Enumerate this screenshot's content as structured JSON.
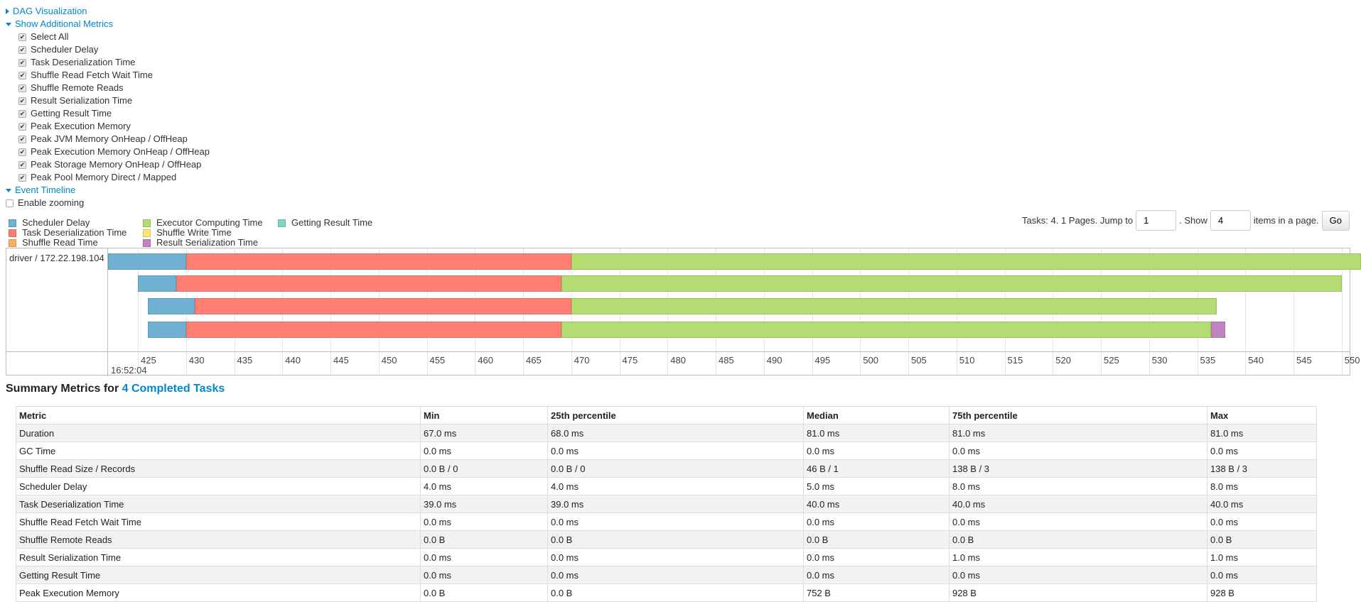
{
  "sections": {
    "dag": "DAG Visualization",
    "metrics": "Show Additional Metrics",
    "timeline": "Event Timeline"
  },
  "metric_checkboxes": [
    {
      "label": "Select All",
      "checked": true
    },
    {
      "label": "Scheduler Delay",
      "checked": true
    },
    {
      "label": "Task Deserialization Time",
      "checked": true
    },
    {
      "label": "Shuffle Read Fetch Wait Time",
      "checked": true
    },
    {
      "label": "Shuffle Remote Reads",
      "checked": true
    },
    {
      "label": "Result Serialization Time",
      "checked": true
    },
    {
      "label": "Getting Result Time",
      "checked": true
    },
    {
      "label": "Peak Execution Memory",
      "checked": true
    },
    {
      "label": "Peak JVM Memory OnHeap / OffHeap",
      "checked": true
    },
    {
      "label": "Peak Execution Memory OnHeap / OffHeap",
      "checked": true
    },
    {
      "label": "Peak Storage Memory OnHeap / OffHeap",
      "checked": true
    },
    {
      "label": "Peak Pool Memory Direct / Mapped",
      "checked": true
    }
  ],
  "enable_zooming": {
    "label": "Enable zooming",
    "checked": false
  },
  "legend": [
    {
      "label": "Scheduler Delay",
      "color": "#6fb1d2"
    },
    {
      "label": "Task Deserialization Time",
      "color": "#ff7f73"
    },
    {
      "label": "Shuffle Read Time",
      "color": "#fdae61"
    },
    {
      "label": "Executor Computing Time",
      "color": "#b3dc73"
    },
    {
      "label": "Shuffle Write Time",
      "color": "#ffe475"
    },
    {
      "label": "Result Serialization Time",
      "color": "#c183bf"
    },
    {
      "label": "Getting Result Time",
      "color": "#7fd4c4"
    }
  ],
  "pager": {
    "text1": "Tasks: 4. 1 Pages. Jump to",
    "page": "1",
    "text2": ". Show",
    "size": "4",
    "text3": "items in a page.",
    "go": "Go"
  },
  "timeline": {
    "executor": "driver / 172.22.198.104",
    "date_label": "16:52:04",
    "ticks": [
      "425",
      "430",
      "435",
      "440",
      "445",
      "450",
      "455",
      "460",
      "465",
      "470",
      "475",
      "480",
      "485",
      "490",
      "495",
      "500",
      "505",
      "510",
      "515",
      "520",
      "525",
      "530",
      "535",
      "540",
      "545",
      "550"
    ],
    "tasks": [
      [
        {
          "type": "Scheduler Delay",
          "start": 421.9,
          "end": 430
        },
        {
          "type": "Task Deserialization Time",
          "start": 430,
          "end": 470
        },
        {
          "type": "Executor Computing Time",
          "start": 470,
          "end": 552
        }
      ],
      [
        {
          "type": "Scheduler Delay",
          "start": 425,
          "end": 429
        },
        {
          "type": "Task Deserialization Time",
          "start": 429,
          "end": 469
        },
        {
          "type": "Executor Computing Time",
          "start": 469,
          "end": 550
        }
      ],
      [
        {
          "type": "Scheduler Delay",
          "start": 426,
          "end": 430.9
        },
        {
          "type": "Task Deserialization Time",
          "start": 430.9,
          "end": 470
        },
        {
          "type": "Executor Computing Time",
          "start": 470,
          "end": 537
        }
      ],
      [
        {
          "type": "Scheduler Delay",
          "start": 426,
          "end": 430
        },
        {
          "type": "Task Deserialization Time",
          "start": 430,
          "end": 469
        },
        {
          "type": "Executor Computing Time",
          "start": 469,
          "end": 536.4
        },
        {
          "type": "Result Serialization Time",
          "start": 536.4,
          "end": 537.9
        }
      ]
    ]
  },
  "summary": {
    "title": "Summary Metrics for",
    "link": "4 Completed Tasks",
    "columns": [
      "Metric",
      "Min",
      "25th percentile",
      "Median",
      "75th percentile",
      "Max"
    ],
    "rows": [
      [
        "Duration",
        "67.0 ms",
        "68.0 ms",
        "81.0 ms",
        "81.0 ms",
        "81.0 ms"
      ],
      [
        "GC Time",
        "0.0 ms",
        "0.0 ms",
        "0.0 ms",
        "0.0 ms",
        "0.0 ms"
      ],
      [
        "Shuffle Read Size / Records",
        "0.0 B / 0",
        "0.0 B / 0",
        "46 B / 1",
        "138 B / 3",
        "138 B / 3"
      ],
      [
        "Scheduler Delay",
        "4.0 ms",
        "4.0 ms",
        "5.0 ms",
        "8.0 ms",
        "8.0 ms"
      ],
      [
        "Task Deserialization Time",
        "39.0 ms",
        "39.0 ms",
        "40.0 ms",
        "40.0 ms",
        "40.0 ms"
      ],
      [
        "Shuffle Read Fetch Wait Time",
        "0.0 ms",
        "0.0 ms",
        "0.0 ms",
        "0.0 ms",
        "0.0 ms"
      ],
      [
        "Shuffle Remote Reads",
        "0.0 B",
        "0.0 B",
        "0.0 B",
        "0.0 B",
        "0.0 B"
      ],
      [
        "Result Serialization Time",
        "0.0 ms",
        "0.0 ms",
        "0.0 ms",
        "1.0 ms",
        "1.0 ms"
      ],
      [
        "Getting Result Time",
        "0.0 ms",
        "0.0 ms",
        "0.0 ms",
        "0.0 ms",
        "0.0 ms"
      ],
      [
        "Peak Execution Memory",
        "0.0 B",
        "0.0 B",
        "752 B",
        "928 B",
        "928 B"
      ]
    ]
  }
}
